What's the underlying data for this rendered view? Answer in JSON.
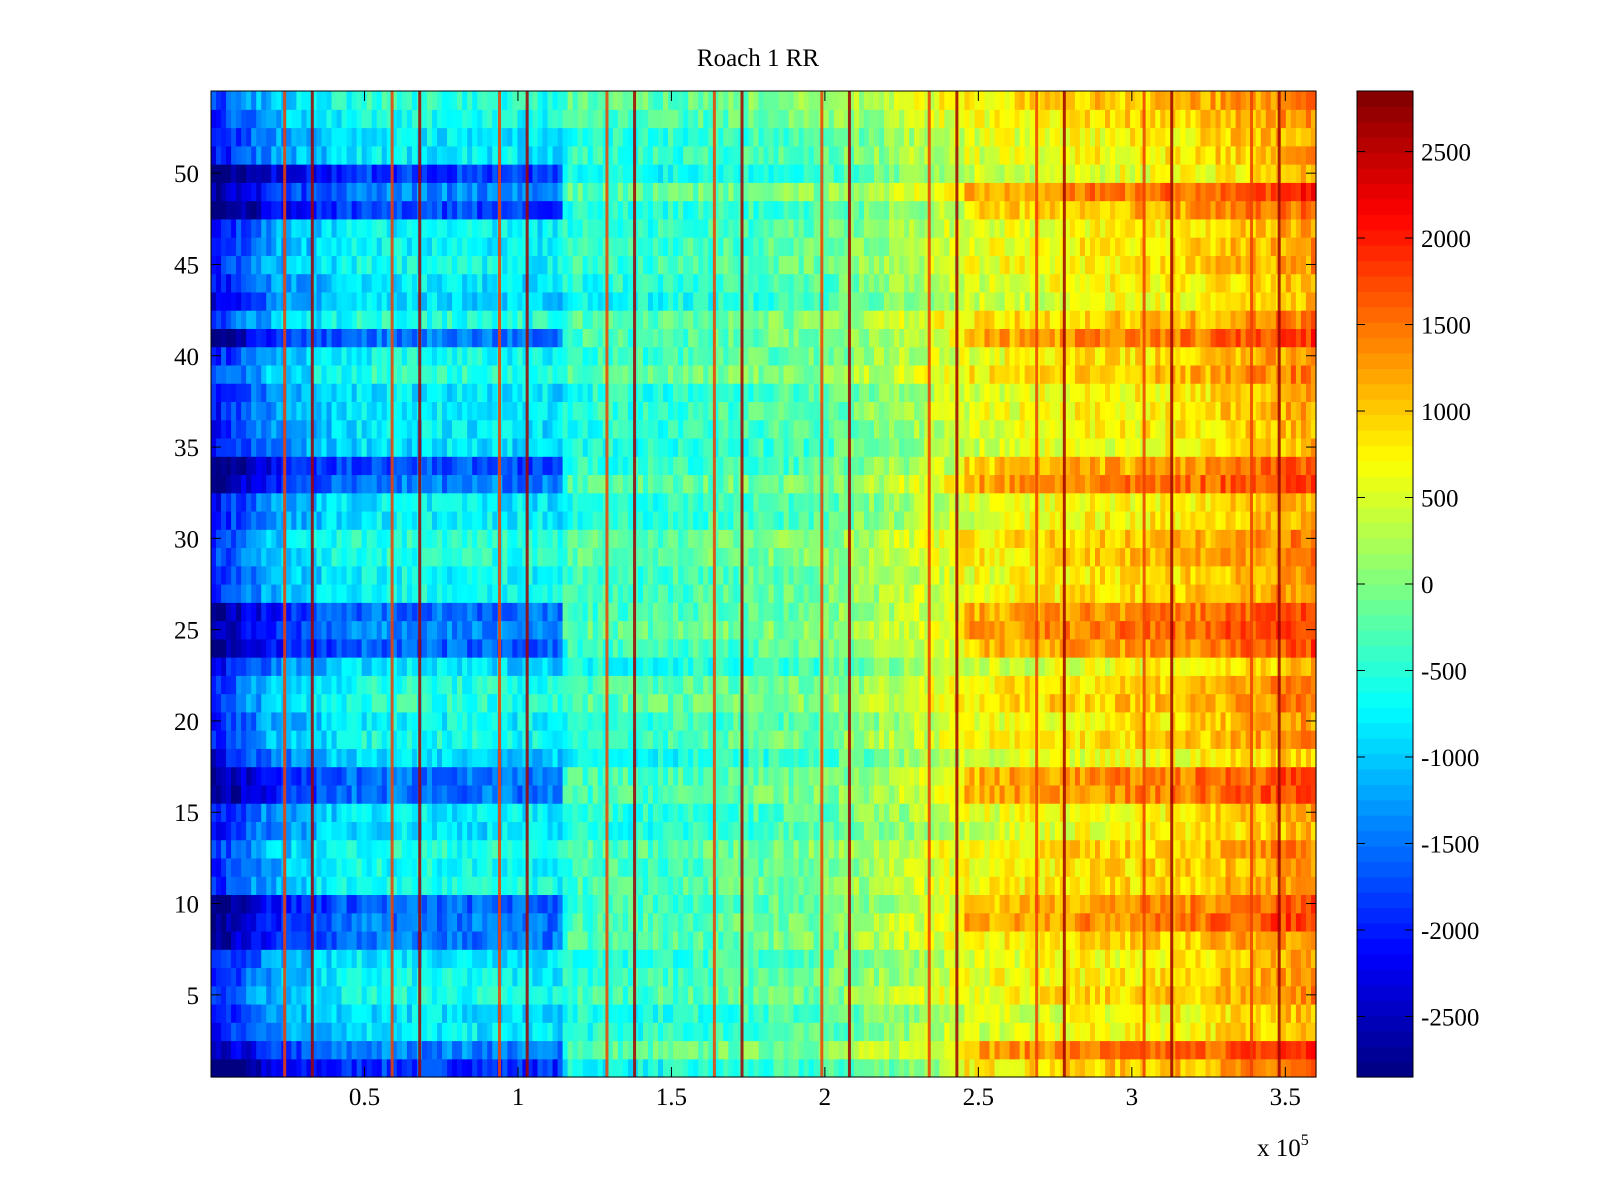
{
  "chart_data": {
    "type": "heatmap",
    "title": "Roach 1 RR",
    "xlabel": "",
    "ylabel": "",
    "x_multiplier_label": "x 10",
    "x_multiplier_exponent": "5",
    "xlim": [
      0,
      3.6
    ],
    "ylim": [
      0.5,
      54.5
    ],
    "x_ticks": [
      0.5,
      1,
      1.5,
      2,
      2.5,
      3,
      3.5
    ],
    "x_tick_labels": [
      "0.5",
      "1",
      "1.5",
      "2",
      "2.5",
      "3",
      "3.5"
    ],
    "y_ticks": [
      5,
      10,
      15,
      20,
      25,
      30,
      35,
      40,
      45,
      50
    ],
    "y_tick_labels": [
      "5",
      "10",
      "15",
      "20",
      "25",
      "30",
      "35",
      "40",
      "45",
      "50"
    ],
    "rows": 54,
    "colormap": "jet",
    "colorbar": {
      "range": [
        -2850,
        2850
      ],
      "ticks": [
        -2500,
        -2000,
        -1500,
        -1000,
        -500,
        0,
        500,
        1000,
        1500,
        2000,
        2500
      ],
      "tick_labels": [
        "-2500",
        "-2000",
        "-1500",
        "-1000",
        "-500",
        "0",
        "500",
        "1000",
        "1500",
        "2000",
        "2500"
      ]
    },
    "column_profile": {
      "x": [
        0,
        0.2,
        0.5,
        0.8,
        1.14,
        1.16,
        1.5,
        2.0,
        2.45,
        2.8,
        3.2,
        3.6
      ],
      "mean": [
        -2100,
        -1200,
        -700,
        -700,
        -750,
        -450,
        -400,
        -150,
        550,
        750,
        900,
        1300
      ]
    },
    "dark_rows_left_region": [
      1,
      2,
      8,
      9,
      10,
      16,
      17,
      24,
      25,
      26,
      33,
      34,
      41,
      48,
      49,
      50
    ],
    "bright_rows_right_region": [
      1,
      2,
      9,
      10,
      16,
      17,
      24,
      25,
      26,
      33,
      34,
      41,
      48,
      49
    ],
    "spike_lines_x": [
      0.24,
      0.33,
      0.59,
      0.68,
      0.94,
      1.03,
      1.29,
      1.38,
      1.64,
      1.73,
      1.99,
      2.08,
      2.34,
      2.43,
      2.69,
      2.78,
      3.04,
      3.13,
      3.39,
      3.48
    ]
  }
}
